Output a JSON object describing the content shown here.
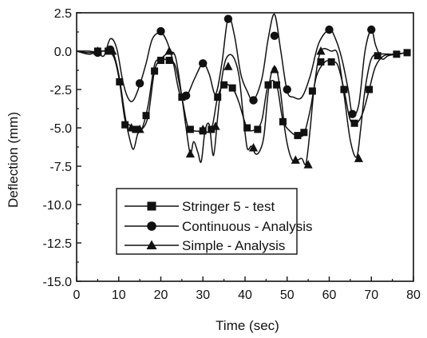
{
  "chart_data": {
    "type": "line",
    "title": "",
    "xlabel": "Time (sec)",
    "ylabel": "Deflection (mm)",
    "xlim": [
      0,
      80
    ],
    "ylim": [
      -15.0,
      2.5
    ],
    "x_ticks": [
      "0",
      "10",
      "20",
      "30",
      "40",
      "50",
      "60",
      "70",
      "80"
    ],
    "y_ticks": [
      "2.5",
      "0.0",
      "-2.5",
      "-5.0",
      "-7.5",
      "-10.0",
      "-12.5",
      "-15.0"
    ],
    "grid": false,
    "legend_position": "lower-center",
    "series": [
      {
        "name": "Stringer 5 - test",
        "marker": "square",
        "points": [
          [
            0,
            0
          ],
          [
            3,
            -0.2
          ],
          [
            5,
            0
          ],
          [
            6,
            0
          ],
          [
            7.5,
            0
          ],
          [
            9,
            -0.5
          ],
          [
            10.2,
            -2
          ],
          [
            11.5,
            -4.5
          ],
          [
            12.5,
            -4.8
          ],
          [
            14,
            -5.1
          ],
          [
            15.5,
            -5.1
          ],
          [
            17,
            -4.2
          ],
          [
            18.5,
            -1.3
          ],
          [
            20,
            -0.6
          ],
          [
            22,
            -0.6
          ],
          [
            23.5,
            -1
          ],
          [
            25,
            -3
          ],
          [
            26.5,
            -5
          ],
          [
            28,
            -5.2
          ],
          [
            30,
            -5.2
          ],
          [
            32,
            -5.1
          ],
          [
            33.5,
            -3
          ],
          [
            35,
            -2.2
          ],
          [
            37,
            -2.4
          ],
          [
            38.5,
            -3.3
          ],
          [
            40.5,
            -5
          ],
          [
            42.5,
            -5.1
          ],
          [
            44,
            -4.5
          ],
          [
            45.5,
            -2.2
          ],
          [
            47.5,
            -2.2
          ],
          [
            49,
            -4.5
          ],
          [
            51,
            -5.3
          ],
          [
            52.5,
            -5.5
          ],
          [
            54,
            -5.4
          ],
          [
            55.5,
            -3.8
          ],
          [
            57,
            -1.6
          ],
          [
            59,
            -0.7
          ],
          [
            60.5,
            -0.7
          ],
          [
            62,
            -0.9
          ],
          [
            63.5,
            -2.5
          ],
          [
            65,
            -4.5
          ],
          [
            66.5,
            -4.7
          ],
          [
            68,
            -4
          ],
          [
            69.5,
            -2.5
          ],
          [
            71,
            -1
          ],
          [
            73,
            -0.3
          ],
          [
            76,
            -0.2
          ],
          [
            78.5,
            -0.1
          ]
        ]
      },
      {
        "name": "Continuous - Analysis",
        "marker": "circle",
        "points": [
          [
            0,
            0
          ],
          [
            3,
            0
          ],
          [
            5,
            -0.1
          ],
          [
            6.5,
            -0.3
          ],
          [
            8,
            0.8
          ],
          [
            9.5,
            0.2
          ],
          [
            11,
            -2
          ],
          [
            12.3,
            -3.1
          ],
          [
            13.5,
            -3.2
          ],
          [
            15,
            -2.2
          ],
          [
            16.5,
            -0.8
          ],
          [
            18,
            0.8
          ],
          [
            20,
            1.2
          ],
          [
            21.5,
            0.6
          ],
          [
            23,
            -0.8
          ],
          [
            24.5,
            -2.8
          ],
          [
            26,
            -3
          ],
          [
            28,
            -1.8
          ],
          [
            30,
            -0.8
          ],
          [
            31.5,
            -1.5
          ],
          [
            33,
            -2.8
          ],
          [
            34.5,
            -0.8
          ],
          [
            36,
            2.2
          ],
          [
            37.5,
            1
          ],
          [
            39,
            -1.5
          ],
          [
            40.5,
            -2.6
          ],
          [
            42,
            -3.2
          ],
          [
            44,
            -1.8
          ],
          [
            45.5,
            0.8
          ],
          [
            47,
            2.4
          ],
          [
            48.5,
            0
          ],
          [
            50,
            -2.6
          ],
          [
            51.5,
            -3
          ],
          [
            53.5,
            -3
          ],
          [
            55.5,
            -1.6
          ],
          [
            57.5,
            0.5
          ],
          [
            60,
            1.4
          ],
          [
            61.5,
            0.8
          ],
          [
            63,
            -0.5
          ],
          [
            64.5,
            -2.5
          ],
          [
            65.5,
            -4.1
          ],
          [
            67,
            -3.5
          ],
          [
            68.5,
            0
          ],
          [
            70,
            1.4
          ],
          [
            71,
            0.4
          ],
          [
            72.5,
            -0.5
          ],
          [
            74,
            -0.3
          ],
          [
            76,
            -0.2
          ],
          [
            78.5,
            -0.1
          ]
        ]
      },
      {
        "name": "Simple - Analysis",
        "marker": "triangle",
        "points": [
          [
            0,
            0
          ],
          [
            3,
            -0.1
          ],
          [
            5,
            0
          ],
          [
            7,
            0
          ],
          [
            8.5,
            0
          ],
          [
            10,
            -1.5
          ],
          [
            11.5,
            -4.2
          ],
          [
            12.5,
            -5.6
          ],
          [
            13.5,
            -6.4
          ],
          [
            14.5,
            -5.4
          ],
          [
            15.5,
            -5.1
          ],
          [
            17,
            -3.5
          ],
          [
            18.5,
            -0.9
          ],
          [
            20,
            -0.5
          ],
          [
            22,
            -0.1
          ],
          [
            23.5,
            -0.4
          ],
          [
            25,
            -3
          ],
          [
            26,
            -5
          ],
          [
            27,
            -6.7
          ],
          [
            27.8,
            -5.9
          ],
          [
            28.8,
            -6.6
          ],
          [
            29.6,
            -7.2
          ],
          [
            30.5,
            -5.2
          ],
          [
            31.5,
            -4.8
          ],
          [
            32.5,
            -6.8
          ],
          [
            33.5,
            -4.3
          ],
          [
            34.5,
            -1.8
          ],
          [
            35.5,
            -0.5
          ],
          [
            37,
            -0.3
          ],
          [
            38.5,
            -1.5
          ],
          [
            39.5,
            -4
          ],
          [
            40.5,
            -6.3
          ],
          [
            41.5,
            -6.2
          ],
          [
            42.5,
            -6.7
          ],
          [
            43.5,
            -6.5
          ],
          [
            44.5,
            -5.5
          ],
          [
            45.5,
            -2.7
          ],
          [
            46.5,
            -1.2
          ],
          [
            47.5,
            -1.2
          ],
          [
            48.5,
            -2.8
          ],
          [
            49.5,
            -5.2
          ],
          [
            50.5,
            -6.6
          ],
          [
            51.5,
            -7.2
          ],
          [
            52.5,
            -7.1
          ],
          [
            53.5,
            -7
          ],
          [
            54.5,
            -7.3
          ],
          [
            55.5,
            -5
          ],
          [
            56.5,
            -2.2
          ],
          [
            58,
            0
          ],
          [
            60.5,
            0
          ],
          [
            62,
            -0.2
          ],
          [
            63.5,
            -2.8
          ],
          [
            65,
            -5.8
          ],
          [
            66.5,
            -6.9
          ],
          [
            67.5,
            -5
          ],
          [
            68.5,
            -2.5
          ],
          [
            70,
            -0.5
          ],
          [
            72,
            -0.2
          ],
          [
            75,
            -0.2
          ],
          [
            78.5,
            -0.1
          ]
        ]
      }
    ],
    "markers": [
      [
        [
          5,
          0
        ],
        [
          7.5,
          0
        ],
        [
          10.2,
          -2
        ],
        [
          11.5,
          -4.8
        ],
        [
          14,
          -5.1
        ],
        [
          16.5,
          -4.2
        ],
        [
          18.5,
          -1.3
        ],
        [
          20,
          -0.6
        ],
        [
          22,
          -0.6
        ],
        [
          25,
          -3
        ],
        [
          27,
          -5.1
        ],
        [
          30,
          -5.2
        ],
        [
          32,
          -5.1
        ],
        [
          33.5,
          -3
        ],
        [
          35,
          -2.2
        ],
        [
          37,
          -2.4
        ],
        [
          40.5,
          -5
        ],
        [
          43,
          -5.1
        ],
        [
          45.5,
          -2.2
        ],
        [
          47.5,
          -2.2
        ],
        [
          49,
          -4.6
        ],
        [
          52.5,
          -5.5
        ],
        [
          54,
          -5.3
        ],
        [
          56,
          -2.6
        ],
        [
          58,
          -0.7
        ],
        [
          60.5,
          -0.7
        ],
        [
          63.5,
          -2.5
        ],
        [
          66,
          -4.7
        ],
        [
          69.5,
          -2.5
        ],
        [
          71.5,
          -0.3
        ],
        [
          76,
          -0.2
        ],
        [
          78.5,
          -0.1
        ]
      ],
      [
        [
          5,
          -0.1
        ],
        [
          8,
          0.1
        ],
        [
          15,
          -2.1
        ],
        [
          20,
          1.3
        ],
        [
          26,
          -2.9
        ],
        [
          30,
          -0.8
        ],
        [
          36,
          2.1
        ],
        [
          42,
          -3.2
        ],
        [
          47,
          1
        ],
        [
          50,
          -2.5
        ],
        [
          60,
          1.4
        ],
        [
          65.5,
          -4.1
        ],
        [
          70,
          1.4
        ]
      ],
      [
        [
          5,
          0
        ],
        [
          8.5,
          0
        ],
        [
          13,
          -5
        ],
        [
          15,
          -5.1
        ],
        [
          22,
          0
        ],
        [
          27,
          -6.7
        ],
        [
          30,
          -5.1
        ],
        [
          33,
          -4.9
        ],
        [
          36,
          -1
        ],
        [
          42,
          -6.3
        ],
        [
          47,
          -1.2
        ],
        [
          52,
          -7.1
        ],
        [
          55,
          -7.4
        ],
        [
          58,
          0
        ],
        [
          67,
          -7
        ]
      ]
    ]
  }
}
